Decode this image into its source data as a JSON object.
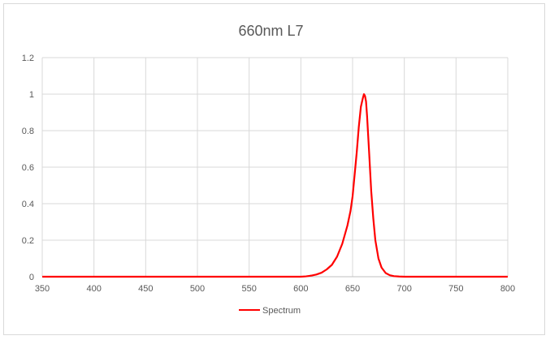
{
  "chart_data": {
    "type": "line",
    "title": "660nm L7",
    "xlabel": "",
    "ylabel": "",
    "xlim": [
      350,
      800
    ],
    "ylim": [
      0,
      1.2
    ],
    "x_ticks": [
      "350",
      "400",
      "450",
      "500",
      "550",
      "600",
      "650",
      "700",
      "750",
      "800"
    ],
    "y_ticks": [
      "0",
      "0.2",
      "0.4",
      "0.6",
      "0.8",
      "1",
      "1.2"
    ],
    "grid": "vertical and horizontal major gridlines",
    "legend_position": "bottom",
    "series": [
      {
        "name": "Spectrum",
        "color": "#ff0000",
        "x": [
          350,
          600,
          605,
          610,
          615,
          620,
          625,
          630,
          635,
          640,
          645,
          648,
          650,
          652,
          654,
          656,
          658,
          660,
          661,
          662,
          663,
          664,
          666,
          668,
          670,
          672,
          675,
          678,
          682,
          686,
          690,
          695,
          700,
          710,
          800
        ],
        "y": [
          0,
          0,
          0.002,
          0.006,
          0.012,
          0.022,
          0.04,
          0.065,
          0.11,
          0.18,
          0.28,
          0.36,
          0.44,
          0.56,
          0.68,
          0.82,
          0.93,
          0.98,
          1.0,
          0.99,
          0.96,
          0.88,
          0.68,
          0.47,
          0.32,
          0.2,
          0.1,
          0.05,
          0.02,
          0.008,
          0.003,
          0.001,
          0,
          0,
          0
        ]
      }
    ]
  }
}
